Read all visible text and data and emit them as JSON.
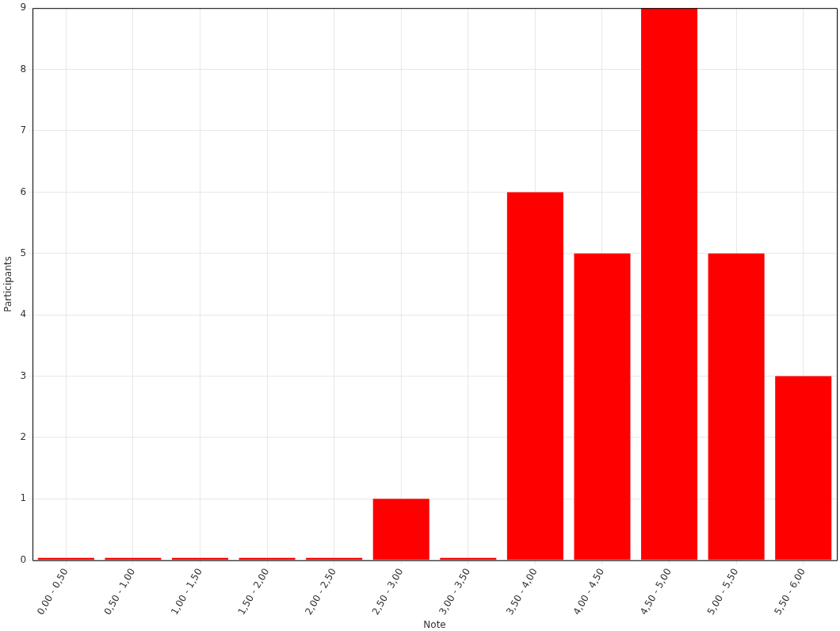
{
  "chart_data": {
    "type": "bar",
    "xlabel": "Note",
    "ylabel": "Participants",
    "categories": [
      "0,00 - 0,50",
      "0,50 - 1,00",
      "1,00 - 1,50",
      "1,50 - 2,00",
      "2,00 - 2,50",
      "2,50 - 3,00",
      "3,00 - 3,50",
      "3,50 - 4,00",
      "4,00 - 4,50",
      "4,50 - 5,00",
      "5,00 - 5,50",
      "5,50 - 6,00"
    ],
    "values": [
      0,
      0,
      0,
      0,
      0,
      1,
      0,
      6,
      5,
      9,
      5,
      3
    ],
    "color": "#ff0000",
    "ylim": [
      0,
      9
    ],
    "yticks": [
      0,
      1,
      2,
      3,
      4,
      5,
      6,
      7,
      8,
      9
    ],
    "grid": true
  }
}
